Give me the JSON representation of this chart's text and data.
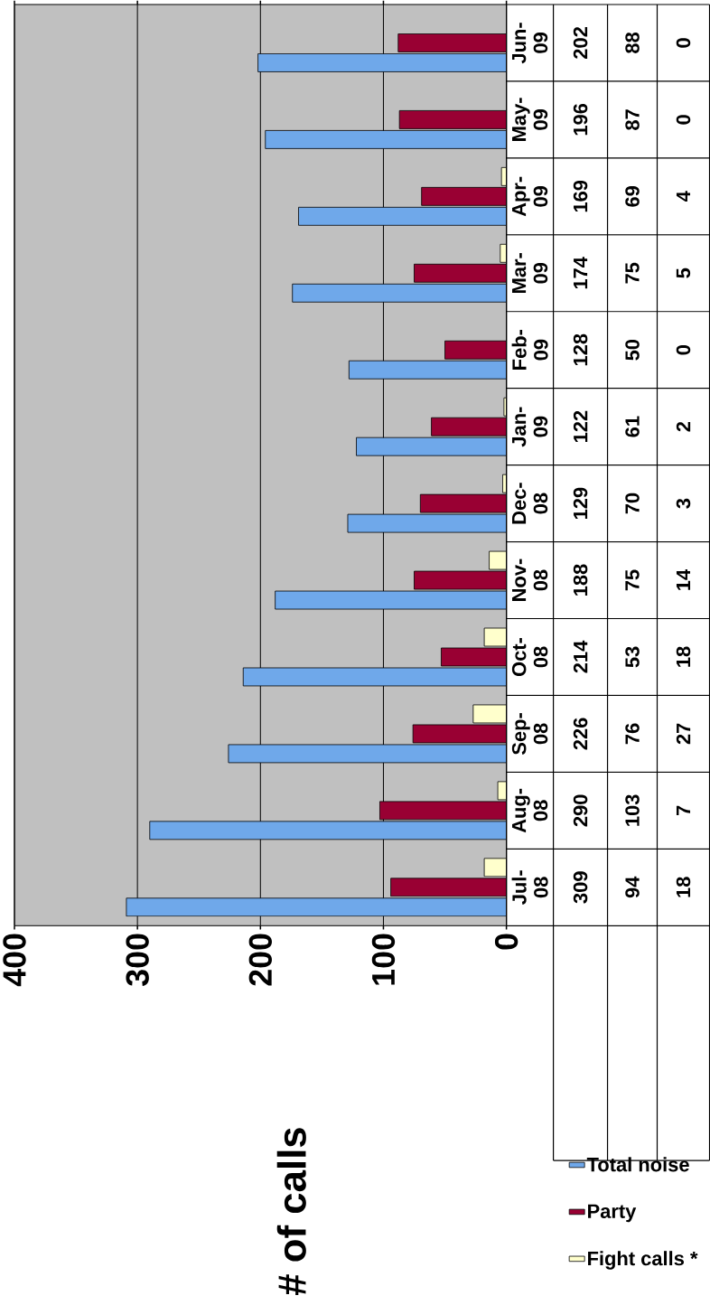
{
  "chart_data": {
    "type": "bar",
    "orientation": "horizontal",
    "ylabel": "# of calls",
    "categories": [
      "Jun-09",
      "May-09",
      "Apr-09",
      "Mar-09",
      "Feb-09",
      "Jan-09",
      "Dec-08",
      "Nov-08",
      "Oct-08",
      "Sep-08",
      "Aug-08",
      "Jul-08"
    ],
    "series": [
      {
        "name": "Total noise",
        "color": "#6fa8ea",
        "values": [
          202,
          196,
          169,
          174,
          128,
          122,
          129,
          188,
          214,
          226,
          290,
          309
        ]
      },
      {
        "name": "Party",
        "color": "#990033",
        "values": [
          88,
          87,
          69,
          75,
          50,
          61,
          70,
          75,
          53,
          76,
          103,
          94
        ]
      },
      {
        "name": "Fight calls *",
        "color": "#ffffcc",
        "values": [
          0,
          0,
          4,
          5,
          0,
          2,
          3,
          14,
          18,
          27,
          7,
          18
        ]
      }
    ],
    "xlim": [
      400,
      0
    ],
    "xticks": [
      0,
      100,
      200,
      300,
      400
    ],
    "grid": "x",
    "legend": "bottom",
    "data_labels": true
  }
}
